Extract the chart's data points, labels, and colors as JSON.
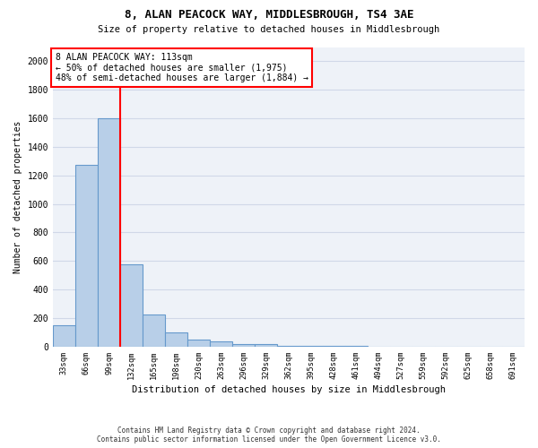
{
  "title": "8, ALAN PEACOCK WAY, MIDDLESBROUGH, TS4 3AE",
  "subtitle": "Size of property relative to detached houses in Middlesbrough",
  "xlabel": "Distribution of detached houses by size in Middlesbrough",
  "ylabel": "Number of detached properties",
  "footer_line1": "Contains HM Land Registry data © Crown copyright and database right 2024.",
  "footer_line2": "Contains public sector information licensed under the Open Government Licence v3.0.",
  "categories": [
    "33sqm",
    "66sqm",
    "99sqm",
    "132sqm",
    "165sqm",
    "198sqm",
    "230sqm",
    "263sqm",
    "296sqm",
    "329sqm",
    "362sqm",
    "395sqm",
    "428sqm",
    "461sqm",
    "494sqm",
    "527sqm",
    "559sqm",
    "592sqm",
    "625sqm",
    "658sqm",
    "691sqm"
  ],
  "values": [
    150,
    1275,
    1600,
    575,
    225,
    100,
    50,
    35,
    20,
    15,
    5,
    3,
    2,
    2,
    1,
    1,
    0,
    0,
    0,
    0,
    0
  ],
  "bar_color": "#b8cfe8",
  "bar_edge_color": "#6699cc",
  "ylim": [
    0,
    2100
  ],
  "yticks": [
    0,
    200,
    400,
    600,
    800,
    1000,
    1200,
    1400,
    1600,
    1800,
    2000
  ],
  "annotation_text_line1": "8 ALAN PEACOCK WAY: 113sqm",
  "annotation_text_line2": "← 50% of detached houses are smaller (1,975)",
  "annotation_text_line3": "48% of semi-detached houses are larger (1,884) →",
  "grid_color": "#d0d8e8",
  "background_color": "#eef2f8"
}
